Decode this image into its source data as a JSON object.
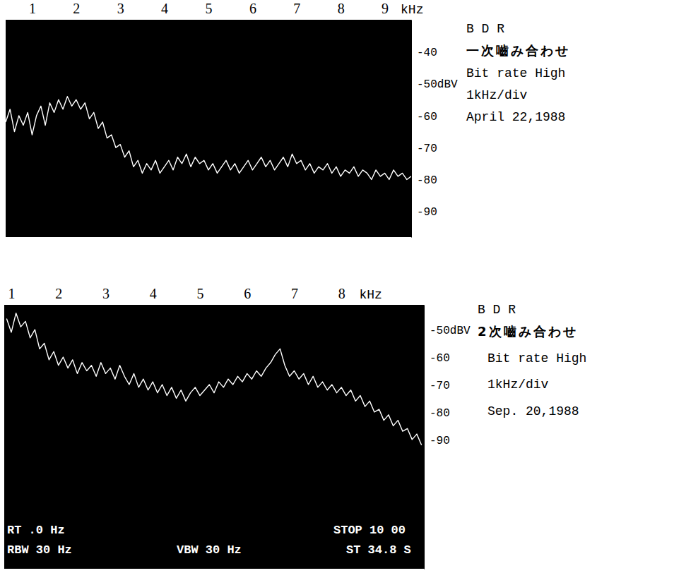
{
  "chart_data": [
    {
      "type": "line",
      "xlabel": "kHz",
      "x": [
        0.4,
        0.5,
        0.6,
        0.7,
        0.8,
        0.9,
        1.0,
        1.1,
        1.2,
        1.3,
        1.4,
        1.5,
        1.6,
        1.7,
        1.8,
        1.9,
        2.0,
        2.1,
        2.2,
        2.3,
        2.4,
        2.5,
        2.6,
        2.7,
        2.8,
        2.9,
        3.0,
        3.1,
        3.2,
        3.3,
        3.4,
        3.5,
        3.6,
        3.7,
        3.8,
        3.9,
        4.0,
        4.1,
        4.2,
        4.3,
        4.4,
        4.5,
        4.6,
        4.7,
        4.8,
        4.9,
        5.0,
        5.1,
        5.2,
        5.3,
        5.4,
        5.5,
        5.6,
        5.7,
        5.8,
        5.9,
        6.0,
        6.1,
        6.2,
        6.3,
        6.4,
        6.5,
        6.6,
        6.7,
        6.8,
        6.9,
        7.0,
        7.1,
        7.2,
        7.3,
        7.4,
        7.5,
        7.6,
        7.7,
        7.8,
        7.9,
        8.0,
        8.1,
        8.2,
        8.3,
        8.4,
        8.5,
        8.6,
        8.7,
        8.8,
        8.9,
        9.0,
        9.1,
        9.2,
        9.3,
        9.4,
        9.5,
        9.6
      ],
      "values": [
        -62,
        -58,
        -65,
        -60,
        -63,
        -59,
        -66,
        -60,
        -57,
        -63,
        -56,
        -59,
        -55,
        -58,
        -54,
        -57,
        -55,
        -58,
        -56,
        -61,
        -59,
        -64,
        -62,
        -67,
        -66,
        -70,
        -69,
        -73,
        -71,
        -76,
        -74,
        -78,
        -75,
        -77,
        -74,
        -78,
        -76,
        -74,
        -77,
        -73,
        -75,
        -72,
        -76,
        -73,
        -75,
        -74,
        -77,
        -75,
        -78,
        -76,
        -74,
        -77,
        -75,
        -78,
        -76,
        -74,
        -77,
        -75,
        -73,
        -76,
        -74,
        -77,
        -75,
        -73,
        -76,
        -72,
        -75,
        -74,
        -77,
        -75,
        -78,
        -76,
        -77,
        -75,
        -78,
        -76,
        -79,
        -77,
        -78,
        -76,
        -79,
        -77,
        -78,
        -80,
        -77,
        -79,
        -78,
        -80,
        -77,
        -79,
        -78,
        -80,
        -79
      ],
      "color": "#ffffff",
      "xlim": [
        0.4,
        9.6
      ],
      "xticks": [
        1,
        2,
        3,
        4,
        5,
        6,
        7,
        8,
        9
      ],
      "ylim": [
        -98,
        -30
      ],
      "yticks": [
        -40,
        {
          "value": -50,
          "label": "-50dBV"
        },
        -60,
        -70,
        -80,
        -90
      ],
      "grid": false,
      "annotations": [
        "B D R",
        "一次嚙み合わせ",
        "Bit rate High",
        "1kHz/div",
        "April 22,1988"
      ]
    },
    {
      "type": "line",
      "xlabel": "kHz",
      "x": [
        0.9,
        1.0,
        1.1,
        1.2,
        1.3,
        1.4,
        1.5,
        1.6,
        1.7,
        1.8,
        1.9,
        2.0,
        2.1,
        2.2,
        2.3,
        2.4,
        2.5,
        2.6,
        2.7,
        2.8,
        2.9,
        3.0,
        3.1,
        3.2,
        3.3,
        3.4,
        3.5,
        3.6,
        3.7,
        3.8,
        3.9,
        4.0,
        4.1,
        4.2,
        4.3,
        4.4,
        4.5,
        4.6,
        4.7,
        4.8,
        4.9,
        5.0,
        5.1,
        5.2,
        5.3,
        5.4,
        5.5,
        5.6,
        5.7,
        5.8,
        5.9,
        6.0,
        6.1,
        6.2,
        6.3,
        6.4,
        6.5,
        6.6,
        6.7,
        6.8,
        6.9,
        7.0,
        7.1,
        7.2,
        7.3,
        7.4,
        7.5,
        7.6,
        7.7,
        7.8,
        7.9,
        8.0,
        8.1,
        8.2,
        8.3,
        8.4,
        8.5,
        8.6,
        8.7,
        8.8,
        8.9,
        9.0,
        9.1,
        9.2,
        9.3,
        9.4,
        9.5,
        9.6,
        9.7
      ],
      "values": [
        -46,
        -51,
        -44,
        -49,
        -47,
        -53,
        -50,
        -57,
        -55,
        -61,
        -58,
        -63,
        -60,
        -64,
        -61,
        -66,
        -62,
        -65,
        -63,
        -67,
        -62,
        -66,
        -64,
        -68,
        -63,
        -67,
        -70,
        -66,
        -71,
        -68,
        -72,
        -69,
        -73,
        -70,
        -74,
        -71,
        -75,
        -72,
        -76,
        -73,
        -71,
        -74,
        -72,
        -70,
        -73,
        -69,
        -71,
        -68,
        -70,
        -67,
        -69,
        -66,
        -68,
        -65,
        -67,
        -64,
        -62,
        -59,
        -57,
        -63,
        -67,
        -65,
        -68,
        -66,
        -70,
        -67,
        -71,
        -69,
        -72,
        -70,
        -73,
        -71,
        -74,
        -72,
        -76,
        -74,
        -78,
        -76,
        -80,
        -79,
        -83,
        -81,
        -85,
        -83,
        -87,
        -86,
        -90,
        -88,
        -92
      ],
      "color": "#ffffff",
      "xlim": [
        0.85,
        9.75
      ],
      "xticks": [
        1,
        2,
        3,
        4,
        5,
        6,
        7,
        8
      ],
      "ylim": [
        -137,
        -41
      ],
      "yticks": [
        {
          "value": -50,
          "label": "-50dBV"
        },
        -60,
        -70,
        -80,
        -90
      ],
      "grid": false,
      "annotations": [
        "B D R",
        "2次嚙み合わせ",
        "Bit rate High",
        "1kHz/div",
        "Sep. 20,1988"
      ],
      "screen_annotations": [
        "RT .0 Hz",
        "RBW 30 Hz",
        "VBW 30 Hz",
        "STOP 10 00",
        "ST 34.8 S"
      ]
    }
  ]
}
